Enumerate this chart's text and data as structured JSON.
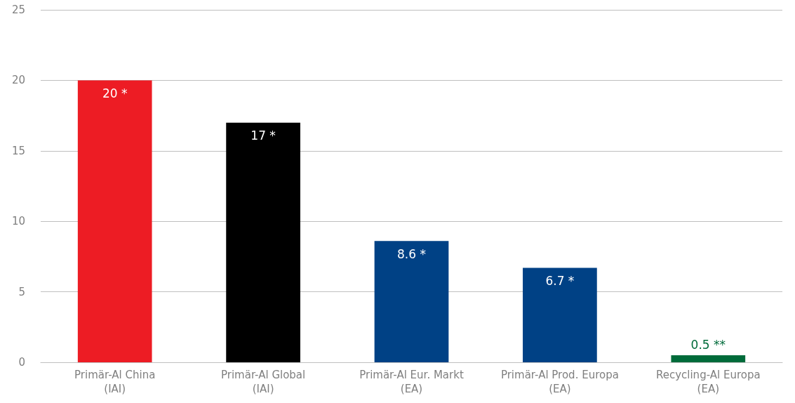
{
  "chart_data": {
    "type": "bar",
    "categories": [
      "Primär-Al China\n(IAI)",
      "Primär-Al Global\n(IAI)",
      "Primär-Al Eur. Markt\n(EA)",
      "Primär-Al Prod. Europa\n(EA)",
      "Recycling-Al Europa\n(EA)"
    ],
    "values": [
      20,
      17,
      8.6,
      6.7,
      0.5
    ],
    "colors": [
      "#ed1c24",
      "#000000",
      "#004185",
      "#004185",
      "#006b3a"
    ],
    "value_labels": [
      "20 *",
      "17 *",
      "8.6 *",
      "6.7 *",
      "0.5 **"
    ],
    "ylim": [
      0,
      25
    ],
    "yticks": [
      0,
      5,
      10,
      15,
      20,
      25
    ],
    "grid": "y"
  }
}
